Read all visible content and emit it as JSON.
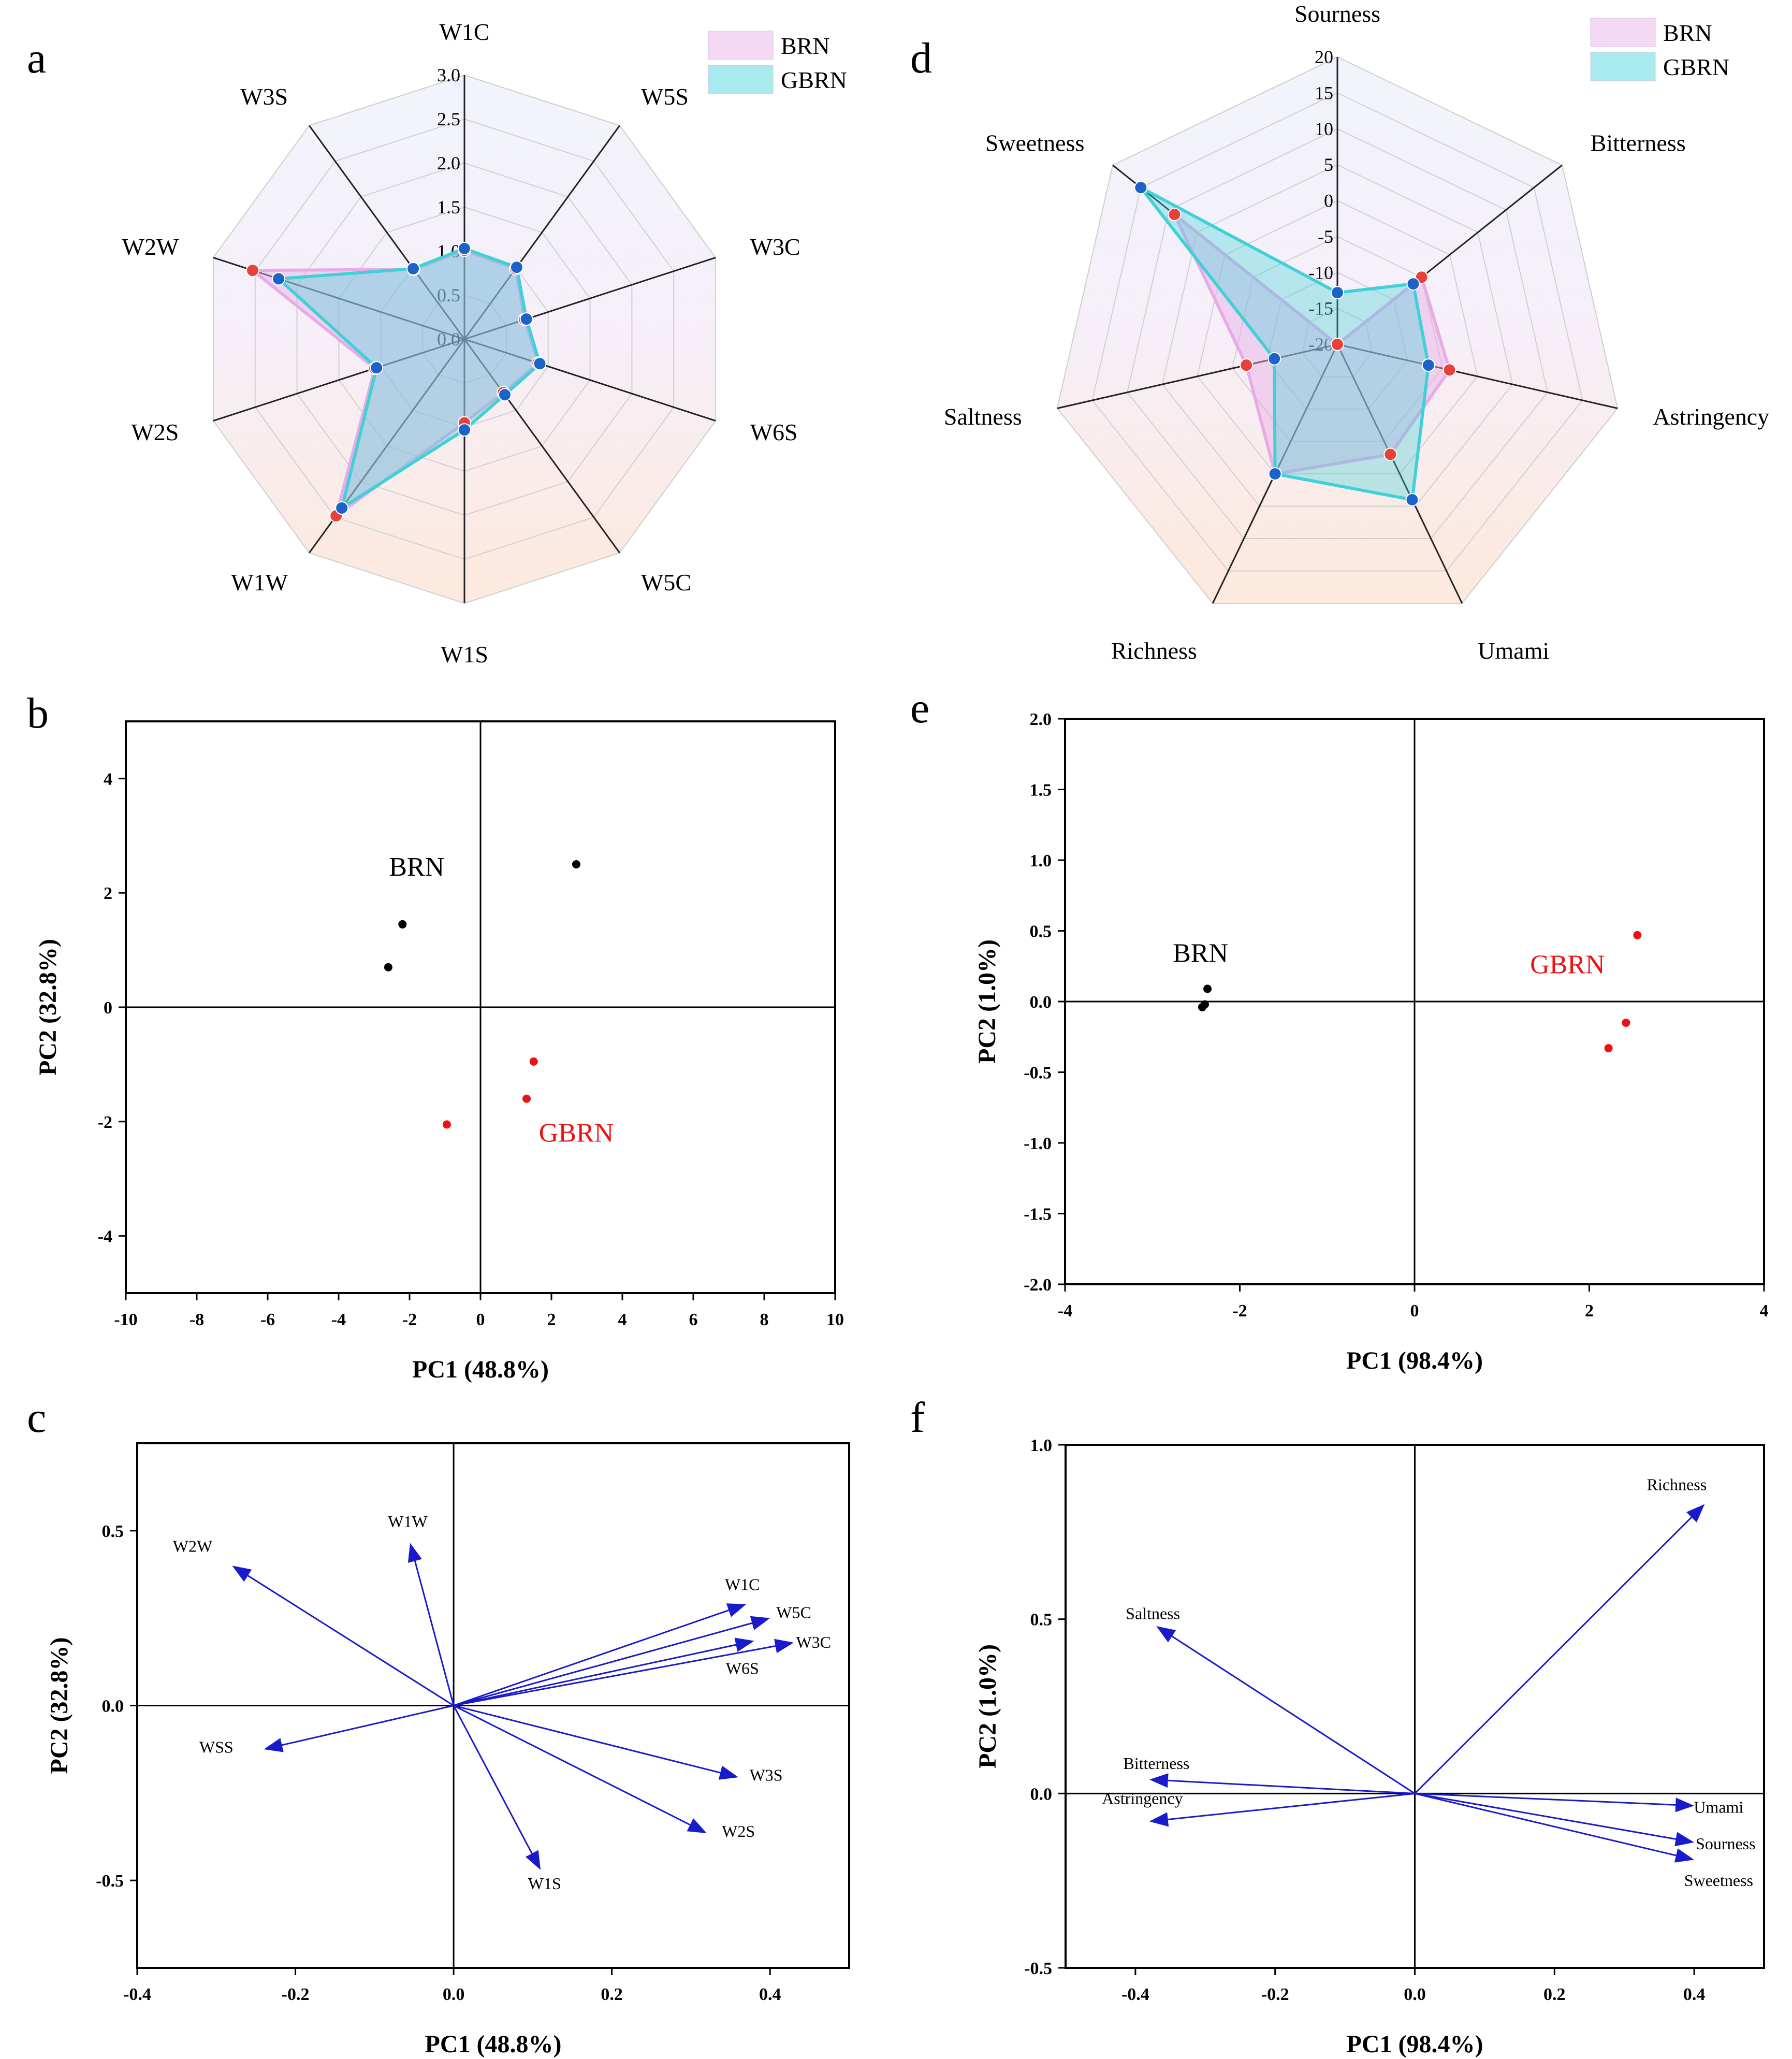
{
  "panels": [
    {
      "id": "a",
      "letter": "a",
      "type": "radar",
      "axes": [
        "W1C",
        "W5S",
        "W3C",
        "W6S",
        "W5C",
        "W1S",
        "W1W",
        "W2S",
        "W2W",
        "W3S"
      ],
      "tick_labels": [
        "0.0",
        "0.5",
        "1.0",
        "1.5",
        "2.0",
        "2.5",
        "3.0"
      ],
      "range": [
        0,
        3.0
      ],
      "series": [
        {
          "name": "BRN",
          "color": "#e9abe6",
          "marker": "#e8413c",
          "values": [
            1.01,
            0.99,
            0.72,
            0.88,
            0.75,
            0.95,
            2.48,
            1.07,
            2.53,
            0.98
          ]
        },
        {
          "name": "GBRN",
          "color": "#3fd1d6",
          "marker": "#1b63c8",
          "values": [
            1.03,
            1.01,
            0.74,
            0.9,
            0.78,
            1.03,
            2.37,
            1.05,
            2.22,
            0.99
          ]
        }
      ],
      "legend": [
        "BRN",
        "GBRN"
      ]
    },
    {
      "id": "d",
      "letter": "d",
      "type": "radar",
      "axes": [
        "Sourness",
        "Bitterness",
        "Astringency",
        "Umami",
        "Richness",
        "Saltness",
        "Sweetness"
      ],
      "tick_labels": [
        "-20",
        "-15",
        "-10",
        "-5",
        "0",
        "5",
        "10",
        "15",
        "20"
      ],
      "range": [
        -20,
        20
      ],
      "series": [
        {
          "name": "BRN",
          "color": "#e9abe6",
          "marker": "#e8413c",
          "values": [
            -20,
            -5,
            -4,
            -3,
            0,
            -7,
            9
          ]
        },
        {
          "name": "GBRN",
          "color": "#3fd1d6",
          "marker": "#1b63c8",
          "values": [
            -12.8,
            -6.5,
            -7,
            4,
            0,
            -11,
            15
          ]
        }
      ],
      "legend": [
        "BRN",
        "GBRN"
      ]
    },
    {
      "id": "b",
      "letter": "b",
      "type": "scatter",
      "xlabel": "PC1 (48.8%)",
      "ylabel": "PC2 (32.8%)",
      "xlim": [
        -10,
        10
      ],
      "ylim": [
        -5,
        5
      ],
      "xticks": [
        -10,
        -8,
        -6,
        -4,
        -2,
        0,
        2,
        4,
        6,
        8,
        10
      ],
      "yticks": [
        -4,
        -2,
        0,
        2,
        4
      ],
      "xtick_labels": [
        "-10",
        "-8",
        "-6",
        "-4",
        "-2",
        "0",
        "2",
        "4",
        "6",
        "8",
        "10"
      ],
      "ytick_labels": [
        "-4",
        "-2",
        "0",
        "2",
        "4"
      ],
      "groups": [
        {
          "name": "BRN",
          "label": "BRN",
          "color": "#000000",
          "label_at": [
            -1.8,
            2.3
          ],
          "points": [
            [
              -2.2,
              1.45
            ],
            [
              -2.6,
              0.7
            ],
            [
              2.7,
              2.5
            ]
          ]
        },
        {
          "name": "GBRN",
          "label": "GBRN",
          "color": "#ee1111",
          "label_at": [
            2.7,
            -2.35
          ],
          "points": [
            [
              1.5,
              -0.95
            ],
            [
              1.3,
              -1.6
            ],
            [
              -0.95,
              -2.05
            ]
          ]
        }
      ]
    },
    {
      "id": "e",
      "letter": "e",
      "type": "scatter",
      "xlabel": "PC1 (98.4%)",
      "ylabel": "PC2 (1.0%)",
      "xlim": [
        -4,
        4
      ],
      "ylim": [
        -2.0,
        2.0
      ],
      "xticks": [
        -4,
        -2,
        0,
        2,
        4
      ],
      "yticks": [
        -2.0,
        -1.5,
        -1.0,
        -0.5,
        0.0,
        0.5,
        1.0,
        1.5,
        2.0
      ],
      "xtick_labels": [
        "-4",
        "-2",
        "0",
        "2",
        "4"
      ],
      "ytick_labels": [
        "-2.0",
        "-1.5",
        "-1.0",
        "-0.5",
        "0.0",
        "0.5",
        "1.0",
        "1.5",
        "2.0"
      ],
      "groups": [
        {
          "name": "BRN",
          "label": "BRN",
          "color": "#000000",
          "label_at": [
            -2.45,
            0.28
          ],
          "points": [
            [
              -2.37,
              0.09
            ],
            [
              -2.4,
              -0.02
            ],
            [
              -2.43,
              -0.04
            ]
          ]
        },
        {
          "name": "GBRN",
          "label": "GBRN",
          "color": "#ee1111",
          "label_at": [
            1.75,
            0.2
          ],
          "points": [
            [
              2.55,
              0.47
            ],
            [
              2.42,
              -0.15
            ],
            [
              2.22,
              -0.33
            ]
          ]
        }
      ]
    },
    {
      "id": "c",
      "letter": "c",
      "type": "biplot",
      "xlabel": "PC1 (48.8%)",
      "ylabel": "PC2 (32.8%)",
      "xlim": [
        -0.4,
        0.5
      ],
      "ylim": [
        -0.75,
        0.75
      ],
      "xticks": [
        -0.4,
        -0.2,
        0.0,
        0.2,
        0.4
      ],
      "yticks": [
        -0.5,
        0.0,
        0.5
      ],
      "xtick_labels": [
        "-0.4",
        "-0.2",
        "0.0",
        "0.2",
        "0.4"
      ],
      "ytick_labels": [
        "-0.5",
        "0.0",
        "0.5"
      ],
      "arrow_color": "#1a1acd",
      "loadings": [
        {
          "name": "W2W",
          "x": -0.28,
          "y": 0.4,
          "label_at": [
            -0.33,
            0.44
          ]
        },
        {
          "name": "W1W",
          "x": -0.055,
          "y": 0.465,
          "label_at": [
            -0.058,
            0.51
          ]
        },
        {
          "name": "W1C",
          "x": 0.37,
          "y": 0.29,
          "label_at": [
            0.365,
            0.33
          ]
        },
        {
          "name": "W5C",
          "x": 0.4,
          "y": 0.25,
          "label_at": [
            0.43,
            0.25
          ]
        },
        {
          "name": "W3C",
          "x": 0.43,
          "y": 0.18,
          "label_at": [
            0.455,
            0.165
          ]
        },
        {
          "name": "W6S",
          "x": 0.38,
          "y": 0.185,
          "label_at": [
            0.365,
            0.09
          ]
        },
        {
          "name": "WSS",
          "x": -0.24,
          "y": -0.125,
          "label_at": [
            -0.3,
            -0.135
          ]
        },
        {
          "name": "W3S",
          "x": 0.36,
          "y": -0.205,
          "label_at": [
            0.395,
            -0.215
          ]
        },
        {
          "name": "W2S",
          "x": 0.32,
          "y": -0.365,
          "label_at": [
            0.36,
            -0.375
          ]
        },
        {
          "name": "W1S",
          "x": 0.11,
          "y": -0.47,
          "label_at": [
            0.115,
            -0.525
          ]
        }
      ]
    },
    {
      "id": "f",
      "letter": "f",
      "type": "biplot",
      "xlabel": "PC1 (98.4%)",
      "ylabel": "PC2 (1.0%)",
      "xlim": [
        -0.5,
        0.5
      ],
      "ylim": [
        -0.5,
        1.0
      ],
      "xticks": [
        -0.4,
        -0.2,
        0.0,
        0.2,
        0.4
      ],
      "yticks": [
        -0.5,
        0.0,
        0.5,
        1.0
      ],
      "xtick_labels": [
        "-0.4",
        "-0.2",
        "0.0",
        "0.2",
        "0.4"
      ],
      "ytick_labels": [
        "-0.5",
        "0.0",
        "0.5",
        "1.0"
      ],
      "arrow_color": "#1a1acd",
      "loadings": [
        {
          "name": "Richness",
          "x": 0.415,
          "y": 0.83,
          "label_at": [
            0.375,
            0.87
          ]
        },
        {
          "name": "Saltness",
          "x": -0.37,
          "y": 0.48,
          "label_at": [
            -0.375,
            0.5
          ]
        },
        {
          "name": "Bitterness",
          "x": -0.38,
          "y": 0.04,
          "label_at": [
            -0.37,
            0.07
          ]
        },
        {
          "name": "Astringency",
          "x": -0.38,
          "y": -0.08,
          "label_at": [
            -0.39,
            -0.03
          ]
        },
        {
          "name": "Umami",
          "x": 0.4,
          "y": -0.035,
          "label_at": [
            0.435,
            -0.055
          ]
        },
        {
          "name": "Sourness",
          "x": 0.4,
          "y": -0.14,
          "label_at": [
            0.445,
            -0.16
          ]
        },
        {
          "name": "Sweetness",
          "x": 0.4,
          "y": -0.19,
          "label_at": [
            0.435,
            -0.265
          ]
        }
      ]
    }
  ]
}
